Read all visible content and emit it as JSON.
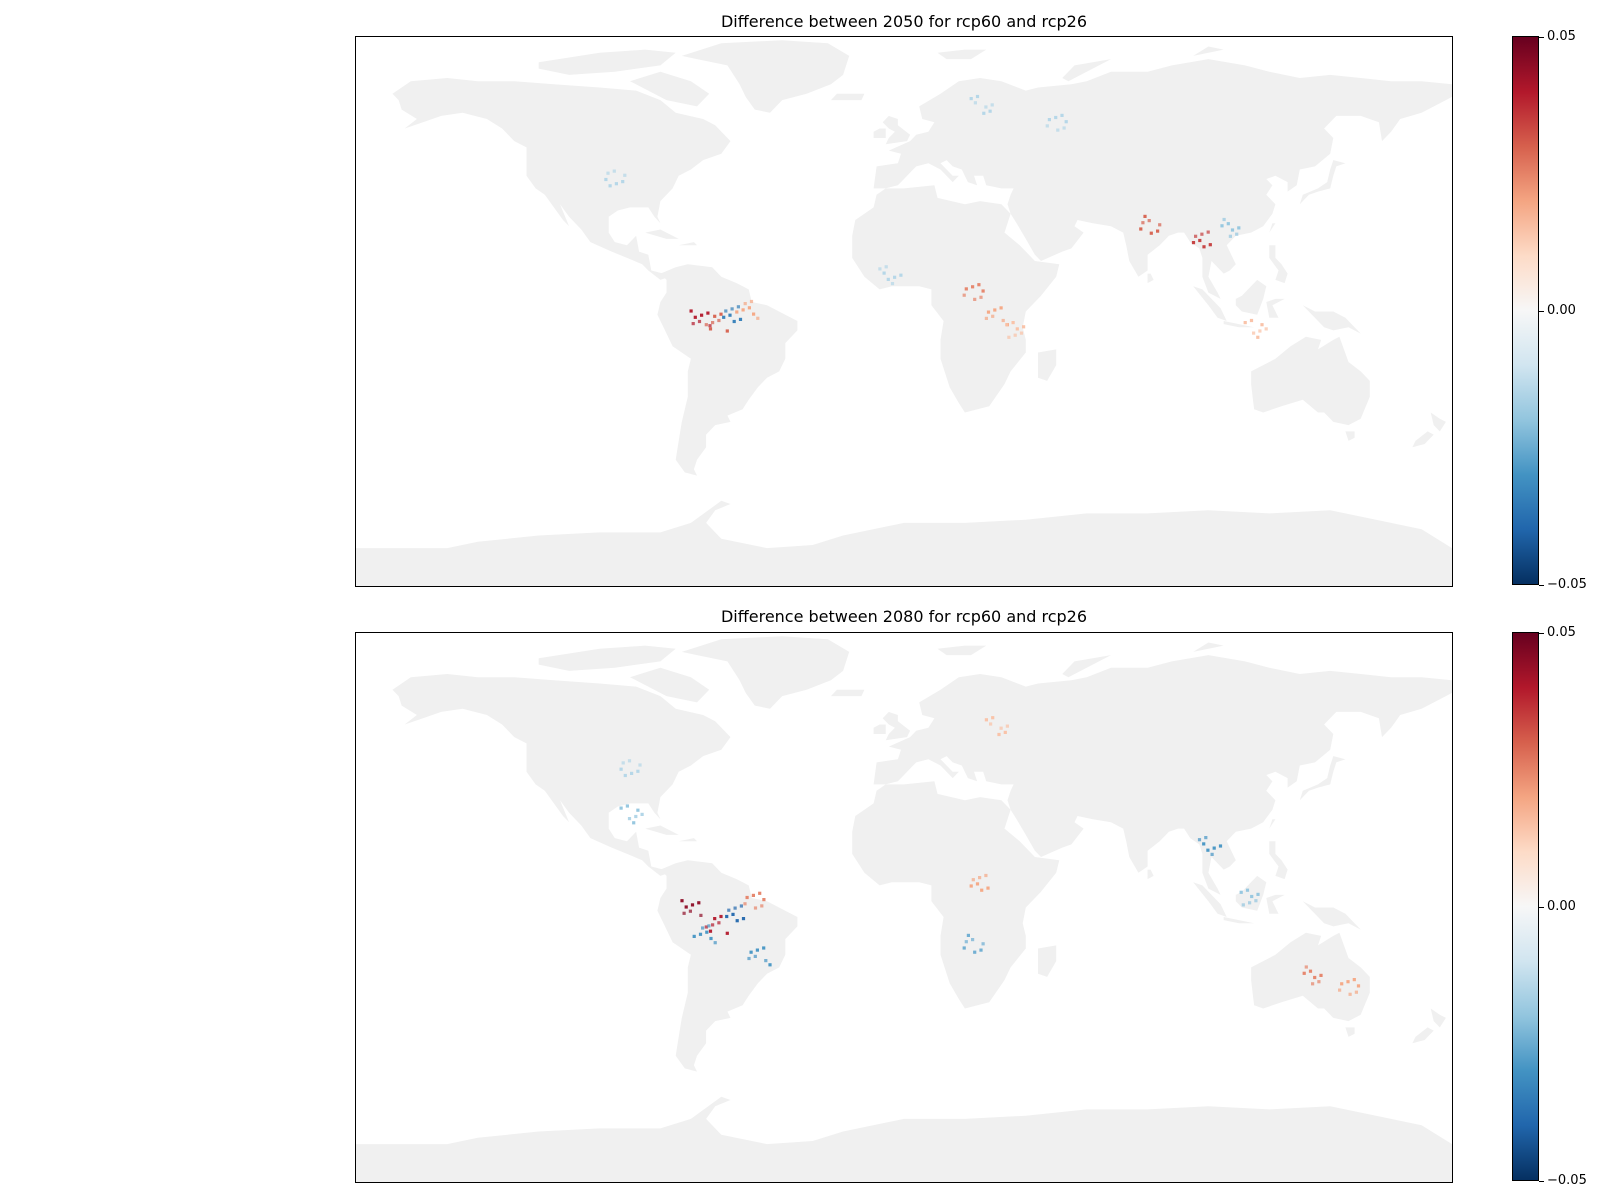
{
  "panels": [
    {
      "title": "Difference between 2050 for rcp60 and rcp26",
      "colorbar": {
        "max_label": "0.05",
        "mid_label": "0.00",
        "min_label": "−0.05"
      },
      "hotspots": [
        {
          "region": "Amazon",
          "lon": -67,
          "lat": -5,
          "value": 0.04
        },
        {
          "region": "Amazon",
          "lon": -62,
          "lat": -6,
          "value": 0.03
        },
        {
          "region": "Amazon",
          "lon": -57,
          "lat": -3,
          "value": -0.035
        },
        {
          "region": "Amazon",
          "lon": -52,
          "lat": -2,
          "value": 0.02
        },
        {
          "region": "Central Africa",
          "lon": 22,
          "lat": 4,
          "value": 0.025
        },
        {
          "region": "Central Africa",
          "lon": 30,
          "lat": -4,
          "value": 0.02
        },
        {
          "region": "India",
          "lon": 80,
          "lat": 25,
          "value": 0.03
        },
        {
          "region": "Southeast Asia",
          "lon": 98,
          "lat": 20,
          "value": 0.035
        },
        {
          "region": "South China",
          "lon": 106,
          "lat": 24,
          "value": -0.02
        },
        {
          "region": "Europe/Russia",
          "lon": 50,
          "lat": 57,
          "value": -0.015
        },
        {
          "region": "Scandinavia",
          "lon": 25,
          "lat": 63,
          "value": -0.015
        },
        {
          "region": "North America",
          "lon": -95,
          "lat": 40,
          "value": -0.015
        },
        {
          "region": "West Africa",
          "lon": -5,
          "lat": 9,
          "value": -0.015
        },
        {
          "region": "East Africa",
          "lon": 36,
          "lat": -8,
          "value": 0.015
        },
        {
          "region": "Indonesia",
          "lon": 115,
          "lat": -8,
          "value": 0.015
        }
      ]
    },
    {
      "title": "Difference between 2080 for rcp60 and rcp26",
      "colorbar": {
        "max_label": "0.05",
        "mid_label": "0.00",
        "min_label": "−0.05"
      },
      "hotspots": [
        {
          "region": "Amazon",
          "lon": -70,
          "lat": -3,
          "value": 0.045
        },
        {
          "region": "Amazon",
          "lon": -62,
          "lat": -8,
          "value": 0.04
        },
        {
          "region": "Amazon",
          "lon": -56,
          "lat": -4,
          "value": -0.04
        },
        {
          "region": "Amazon",
          "lon": -66,
          "lat": -11,
          "value": -0.03
        },
        {
          "region": "Amazon",
          "lon": -50,
          "lat": 0,
          "value": 0.025
        },
        {
          "region": "South Brazil",
          "lon": -48,
          "lat": -18,
          "value": -0.03
        },
        {
          "region": "Southern Africa",
          "lon": 22,
          "lat": -14,
          "value": -0.025
        },
        {
          "region": "Central Africa",
          "lon": 25,
          "lat": 5,
          "value": 0.02
        },
        {
          "region": "Australia",
          "lon": 133,
          "lat": -24,
          "value": 0.025
        },
        {
          "region": "East Australia",
          "lon": 146,
          "lat": -28,
          "value": 0.02
        },
        {
          "region": "Europe",
          "lon": 30,
          "lat": 55,
          "value": 0.015
        },
        {
          "region": "North America",
          "lon": -90,
          "lat": 42,
          "value": -0.015
        },
        {
          "region": "Southeast Asia",
          "lon": 100,
          "lat": 17,
          "value": -0.03
        },
        {
          "region": "Borneo",
          "lon": 113,
          "lat": 1,
          "value": -0.02
        },
        {
          "region": "Gulf of Mexico",
          "lon": -90,
          "lat": 27,
          "value": -0.02
        }
      ]
    }
  ],
  "colors": {
    "land": "#f0f0f0",
    "ocean": "#ffffff",
    "cmap_max": "#67001f",
    "cmap_mid": "#f7f7f7",
    "cmap_min": "#053061"
  },
  "colormap": "RdBu_r",
  "value_range": [
    -0.05,
    0.05
  ]
}
